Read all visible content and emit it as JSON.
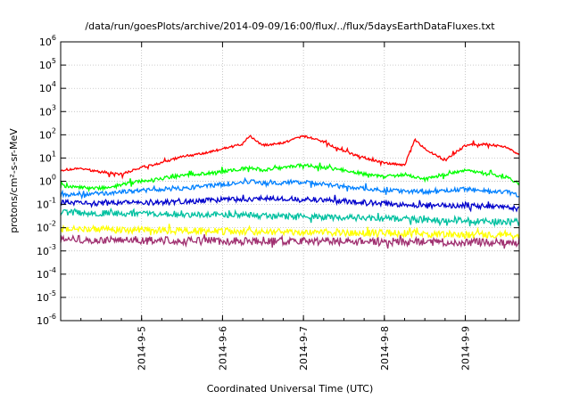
{
  "chart_data": {
    "type": "line",
    "title": "/data/run/goesPlots/archive/2014-09-09/16:00/flux/../flux/5daysEarthDataFluxes.txt",
    "xlabel": "Coordinated Universal Time (UTC)",
    "ylabel": "protons/cm²-s-sr-MeV",
    "y_scale": "log",
    "ylim": [
      1e-06,
      1000000.0
    ],
    "y_ticks": [
      {
        "base": "10",
        "exp": "-6"
      },
      {
        "base": "10",
        "exp": "-5"
      },
      {
        "base": "10",
        "exp": "-4"
      },
      {
        "base": "10",
        "exp": "-3"
      },
      {
        "base": "10",
        "exp": "-2"
      },
      {
        "base": "10",
        "exp": "-1"
      },
      {
        "base": "10",
        "exp": "0"
      },
      {
        "base": "10",
        "exp": "1"
      },
      {
        "base": "10",
        "exp": "2"
      },
      {
        "base": "10",
        "exp": "3"
      },
      {
        "base": "10",
        "exp": "4"
      },
      {
        "base": "10",
        "exp": "5"
      },
      {
        "base": "10",
        "exp": "6"
      }
    ],
    "x_ticks": [
      "2014-9-5",
      "2014-9-6",
      "2014-9-7",
      "2014-9-8",
      "2014-9-9"
    ],
    "xlim": [
      "2014-09-04 00:00",
      "2014-09-09 16:00"
    ],
    "grid": true,
    "series": [
      {
        "color": "#ff0000",
        "x": [
          "2014-09-04 00:00",
          "2014-09-04 06:00",
          "2014-09-04 12:00",
          "2014-09-04 18:00",
          "2014-09-05 00:00",
          "2014-09-05 06:00",
          "2014-09-05 12:00",
          "2014-09-05 18:00",
          "2014-09-06 00:00",
          "2014-09-06 06:00",
          "2014-09-06 08:00",
          "2014-09-06 12:00",
          "2014-09-06 18:00",
          "2014-09-07 00:00",
          "2014-09-07 06:00",
          "2014-09-07 12:00",
          "2014-09-07 18:00",
          "2014-09-08 00:00",
          "2014-09-08 06:00",
          "2014-09-08 09:00",
          "2014-09-08 12:00",
          "2014-09-08 18:00",
          "2014-09-09 00:00",
          "2014-09-09 06:00",
          "2014-09-09 12:00",
          "2014-09-09 16:00"
        ],
        "values": [
          3,
          3.5,
          2.5,
          2,
          4,
          6,
          12,
          15,
          25,
          40,
          90,
          35,
          45,
          90,
          50,
          20,
          10,
          6,
          5,
          60,
          25,
          8,
          35,
          40,
          30,
          14
        ]
      },
      {
        "color": "#00ff00",
        "x": [
          "2014-09-04 00:00",
          "2014-09-04 12:00",
          "2014-09-05 00:00",
          "2014-09-05 12:00",
          "2014-09-06 00:00",
          "2014-09-06 08:00",
          "2014-09-06 12:00",
          "2014-09-07 00:00",
          "2014-09-07 12:00",
          "2014-09-08 00:00",
          "2014-09-08 06:00",
          "2014-09-08 12:00",
          "2014-09-09 00:00",
          "2014-09-09 12:00",
          "2014-09-09 16:00"
        ],
        "values": [
          0.6,
          0.5,
          1.0,
          1.8,
          2.5,
          4,
          3,
          5,
          3,
          1.5,
          2,
          1.2,
          3,
          1.5,
          0.8
        ]
      },
      {
        "color": "#0080ff",
        "x": [
          "2014-09-04 00:00",
          "2014-09-04 12:00",
          "2014-09-05 00:00",
          "2014-09-05 12:00",
          "2014-09-06 00:00",
          "2014-09-06 08:00",
          "2014-09-06 12:00",
          "2014-09-07 00:00",
          "2014-09-07 12:00",
          "2014-09-08 00:00",
          "2014-09-08 12:00",
          "2014-09-09 00:00",
          "2014-09-09 12:00",
          "2014-09-09 16:00"
        ],
        "values": [
          0.25,
          0.3,
          0.4,
          0.5,
          0.7,
          1.0,
          0.8,
          0.9,
          0.6,
          0.4,
          0.35,
          0.45,
          0.35,
          0.25
        ]
      },
      {
        "color": "#0000cc",
        "x": [
          "2014-09-04 00:00",
          "2014-09-04 12:00",
          "2014-09-05 00:00",
          "2014-09-05 12:00",
          "2014-09-06 00:00",
          "2014-09-06 12:00",
          "2014-09-07 00:00",
          "2014-09-07 12:00",
          "2014-09-08 00:00",
          "2014-09-08 12:00",
          "2014-09-09 00:00",
          "2014-09-09 12:00",
          "2014-09-09 16:00"
        ],
        "values": [
          0.12,
          0.11,
          0.12,
          0.13,
          0.16,
          0.18,
          0.17,
          0.14,
          0.11,
          0.09,
          0.09,
          0.08,
          0.06
        ]
      },
      {
        "color": "#00c0a0",
        "x": [
          "2014-09-04 00:00",
          "2014-09-05 00:00",
          "2014-09-06 00:00",
          "2014-09-07 00:00",
          "2014-09-08 00:00",
          "2014-09-09 00:00",
          "2014-09-09 16:00"
        ],
        "values": [
          0.045,
          0.04,
          0.035,
          0.03,
          0.025,
          0.02,
          0.018
        ]
      },
      {
        "color": "#ffff00",
        "x": [
          "2014-09-04 00:00",
          "2014-09-05 00:00",
          "2014-09-06 00:00",
          "2014-09-07 00:00",
          "2014-09-08 00:00",
          "2014-09-09 00:00",
          "2014-09-09 16:00"
        ],
        "values": [
          0.009,
          0.008,
          0.007,
          0.0065,
          0.006,
          0.005,
          0.0045
        ]
      },
      {
        "color": "#a03070",
        "x": [
          "2014-09-04 00:00",
          "2014-09-05 00:00",
          "2014-09-06 00:00",
          "2014-09-07 00:00",
          "2014-09-08 00:00",
          "2014-09-09 00:00",
          "2014-09-09 16:00"
        ],
        "values": [
          0.0032,
          0.0028,
          0.0027,
          0.0026,
          0.0025,
          0.0024,
          0.0022
        ]
      }
    ]
  }
}
